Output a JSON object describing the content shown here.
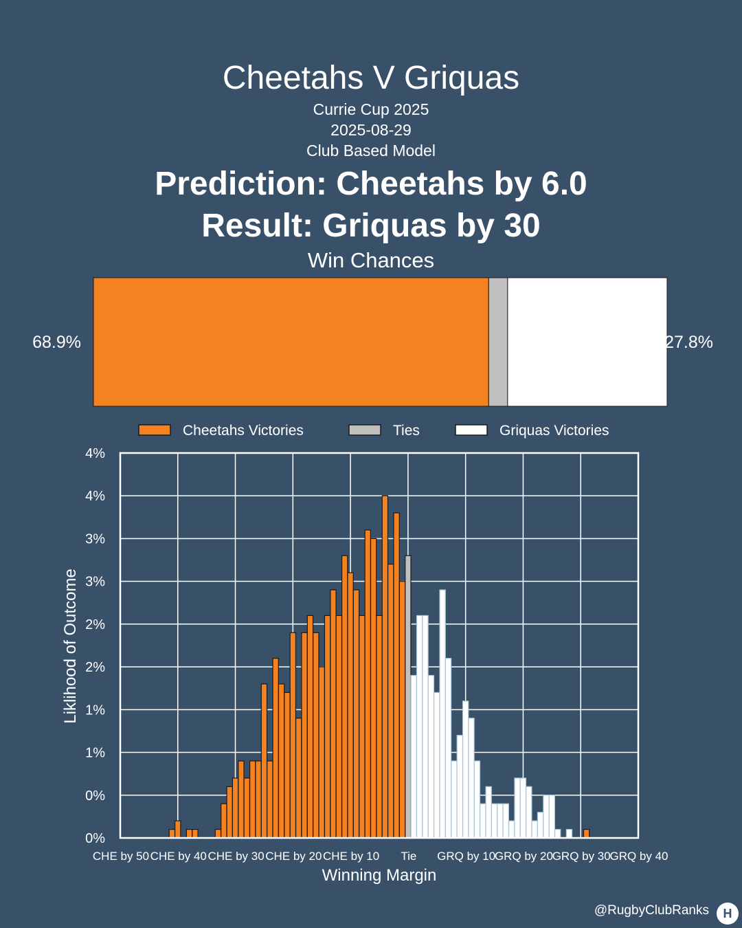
{
  "header": {
    "title": "Cheetahs V Griquas",
    "competition": "Currie Cup 2025",
    "date": "2025-08-29",
    "model": "Club Based Model",
    "prediction": "Prediction: Cheetahs by 6.0",
    "result": "Result: Griquas by 30"
  },
  "footer": {
    "handle": "@RugbyClubRanks",
    "logo_icon": "rugby-posts-icon"
  },
  "colors": {
    "background": "#395069",
    "cheetahs": "#f58220",
    "ties": "#c0c0c0",
    "griquas": "#ffffff"
  },
  "chart_data": [
    {
      "type": "bar",
      "orientation": "horizontal-stacked",
      "title": "Win Chances",
      "segments": [
        {
          "name": "Cheetahs Victories",
          "value": 68.9,
          "label": "68.9%"
        },
        {
          "name": "Ties",
          "value": 3.3
        },
        {
          "name": "Griquas Victories",
          "value": 27.8,
          "label": "27.8%"
        }
      ],
      "legend": {
        "position": "bottom",
        "entries": [
          "Cheetahs Victories",
          "Ties",
          "Griquas Victories"
        ]
      }
    },
    {
      "type": "bar",
      "xlabel": "Winning Margin",
      "ylabel": "Liklihood of Outcome",
      "xlim": [
        -50,
        40
      ],
      "ylim": [
        0,
        4.5
      ],
      "x_ticks": [
        {
          "v": -50,
          "label": "CHE by 50"
        },
        {
          "v": -40,
          "label": "CHE by 40"
        },
        {
          "v": -30,
          "label": "CHE by 30"
        },
        {
          "v": -20,
          "label": "CHE by 20"
        },
        {
          "v": -10,
          "label": "CHE by 10"
        },
        {
          "v": 0,
          "label": "Tie"
        },
        {
          "v": 10,
          "label": "GRQ by 10"
        },
        {
          "v": 20,
          "label": "GRQ by 20"
        },
        {
          "v": 30,
          "label": "GRQ by 30"
        },
        {
          "v": 40,
          "label": "GRQ by 40"
        }
      ],
      "y_ticks": [
        {
          "v": 0,
          "label": "0%"
        },
        {
          "v": 0.5,
          "label": "0%"
        },
        {
          "v": 1.0,
          "label": "1%"
        },
        {
          "v": 1.5,
          "label": "1%"
        },
        {
          "v": 2.0,
          "label": "2%"
        },
        {
          "v": 2.5,
          "label": "2%"
        },
        {
          "v": 3.0,
          "label": "3%"
        },
        {
          "v": 3.5,
          "label": "3%"
        },
        {
          "v": 4.0,
          "label": "4%"
        },
        {
          "v": 4.5,
          "label": "4%"
        }
      ],
      "grid": true,
      "series": [
        {
          "name": "Cheetahs Victories",
          "x": [
            -41,
            -40,
            -38,
            -37,
            -33,
            -32,
            -31,
            -30,
            -29,
            -28,
            -27,
            -26,
            -25,
            -24,
            -23,
            -22,
            -21,
            -20,
            -19,
            -18,
            -17,
            -16,
            -15,
            -14,
            -13,
            -12,
            -11,
            -10,
            -9,
            -8,
            -7,
            -6,
            -5,
            -4,
            -3,
            -2,
            -1,
            31
          ],
          "values": [
            0.1,
            0.2,
            0.1,
            0.1,
            0.1,
            0.4,
            0.6,
            0.7,
            0.9,
            0.7,
            0.9,
            0.9,
            1.8,
            0.9,
            2.1,
            1.8,
            1.7,
            2.4,
            1.4,
            2.4,
            2.6,
            2.4,
            2.0,
            2.6,
            2.9,
            2.6,
            3.3,
            3.1,
            2.9,
            2.6,
            3.6,
            3.5,
            2.6,
            4.0,
            3.2,
            3.8,
            3.0,
            0.1
          ]
        },
        {
          "name": "Ties",
          "x": [
            0
          ],
          "values": [
            3.3
          ]
        },
        {
          "name": "Griquas Victories",
          "x": [
            1,
            2,
            3,
            4,
            5,
            6,
            7,
            8,
            9,
            10,
            11,
            12,
            13,
            14,
            15,
            16,
            17,
            18,
            19,
            20,
            21,
            22,
            23,
            24,
            25,
            26,
            27,
            28,
            29,
            30
          ],
          "values": [
            1.9,
            2.6,
            2.6,
            1.9,
            1.7,
            2.9,
            2.1,
            0.9,
            1.2,
            1.6,
            1.4,
            0.9,
            0.4,
            0.6,
            0.4,
            0.4,
            0.4,
            0.2,
            0.7,
            0.7,
            0.6,
            0.2,
            0.3,
            0.5,
            0.5,
            0.1,
            0.0,
            0.1,
            0.0,
            0.0
          ]
        }
      ]
    }
  ]
}
